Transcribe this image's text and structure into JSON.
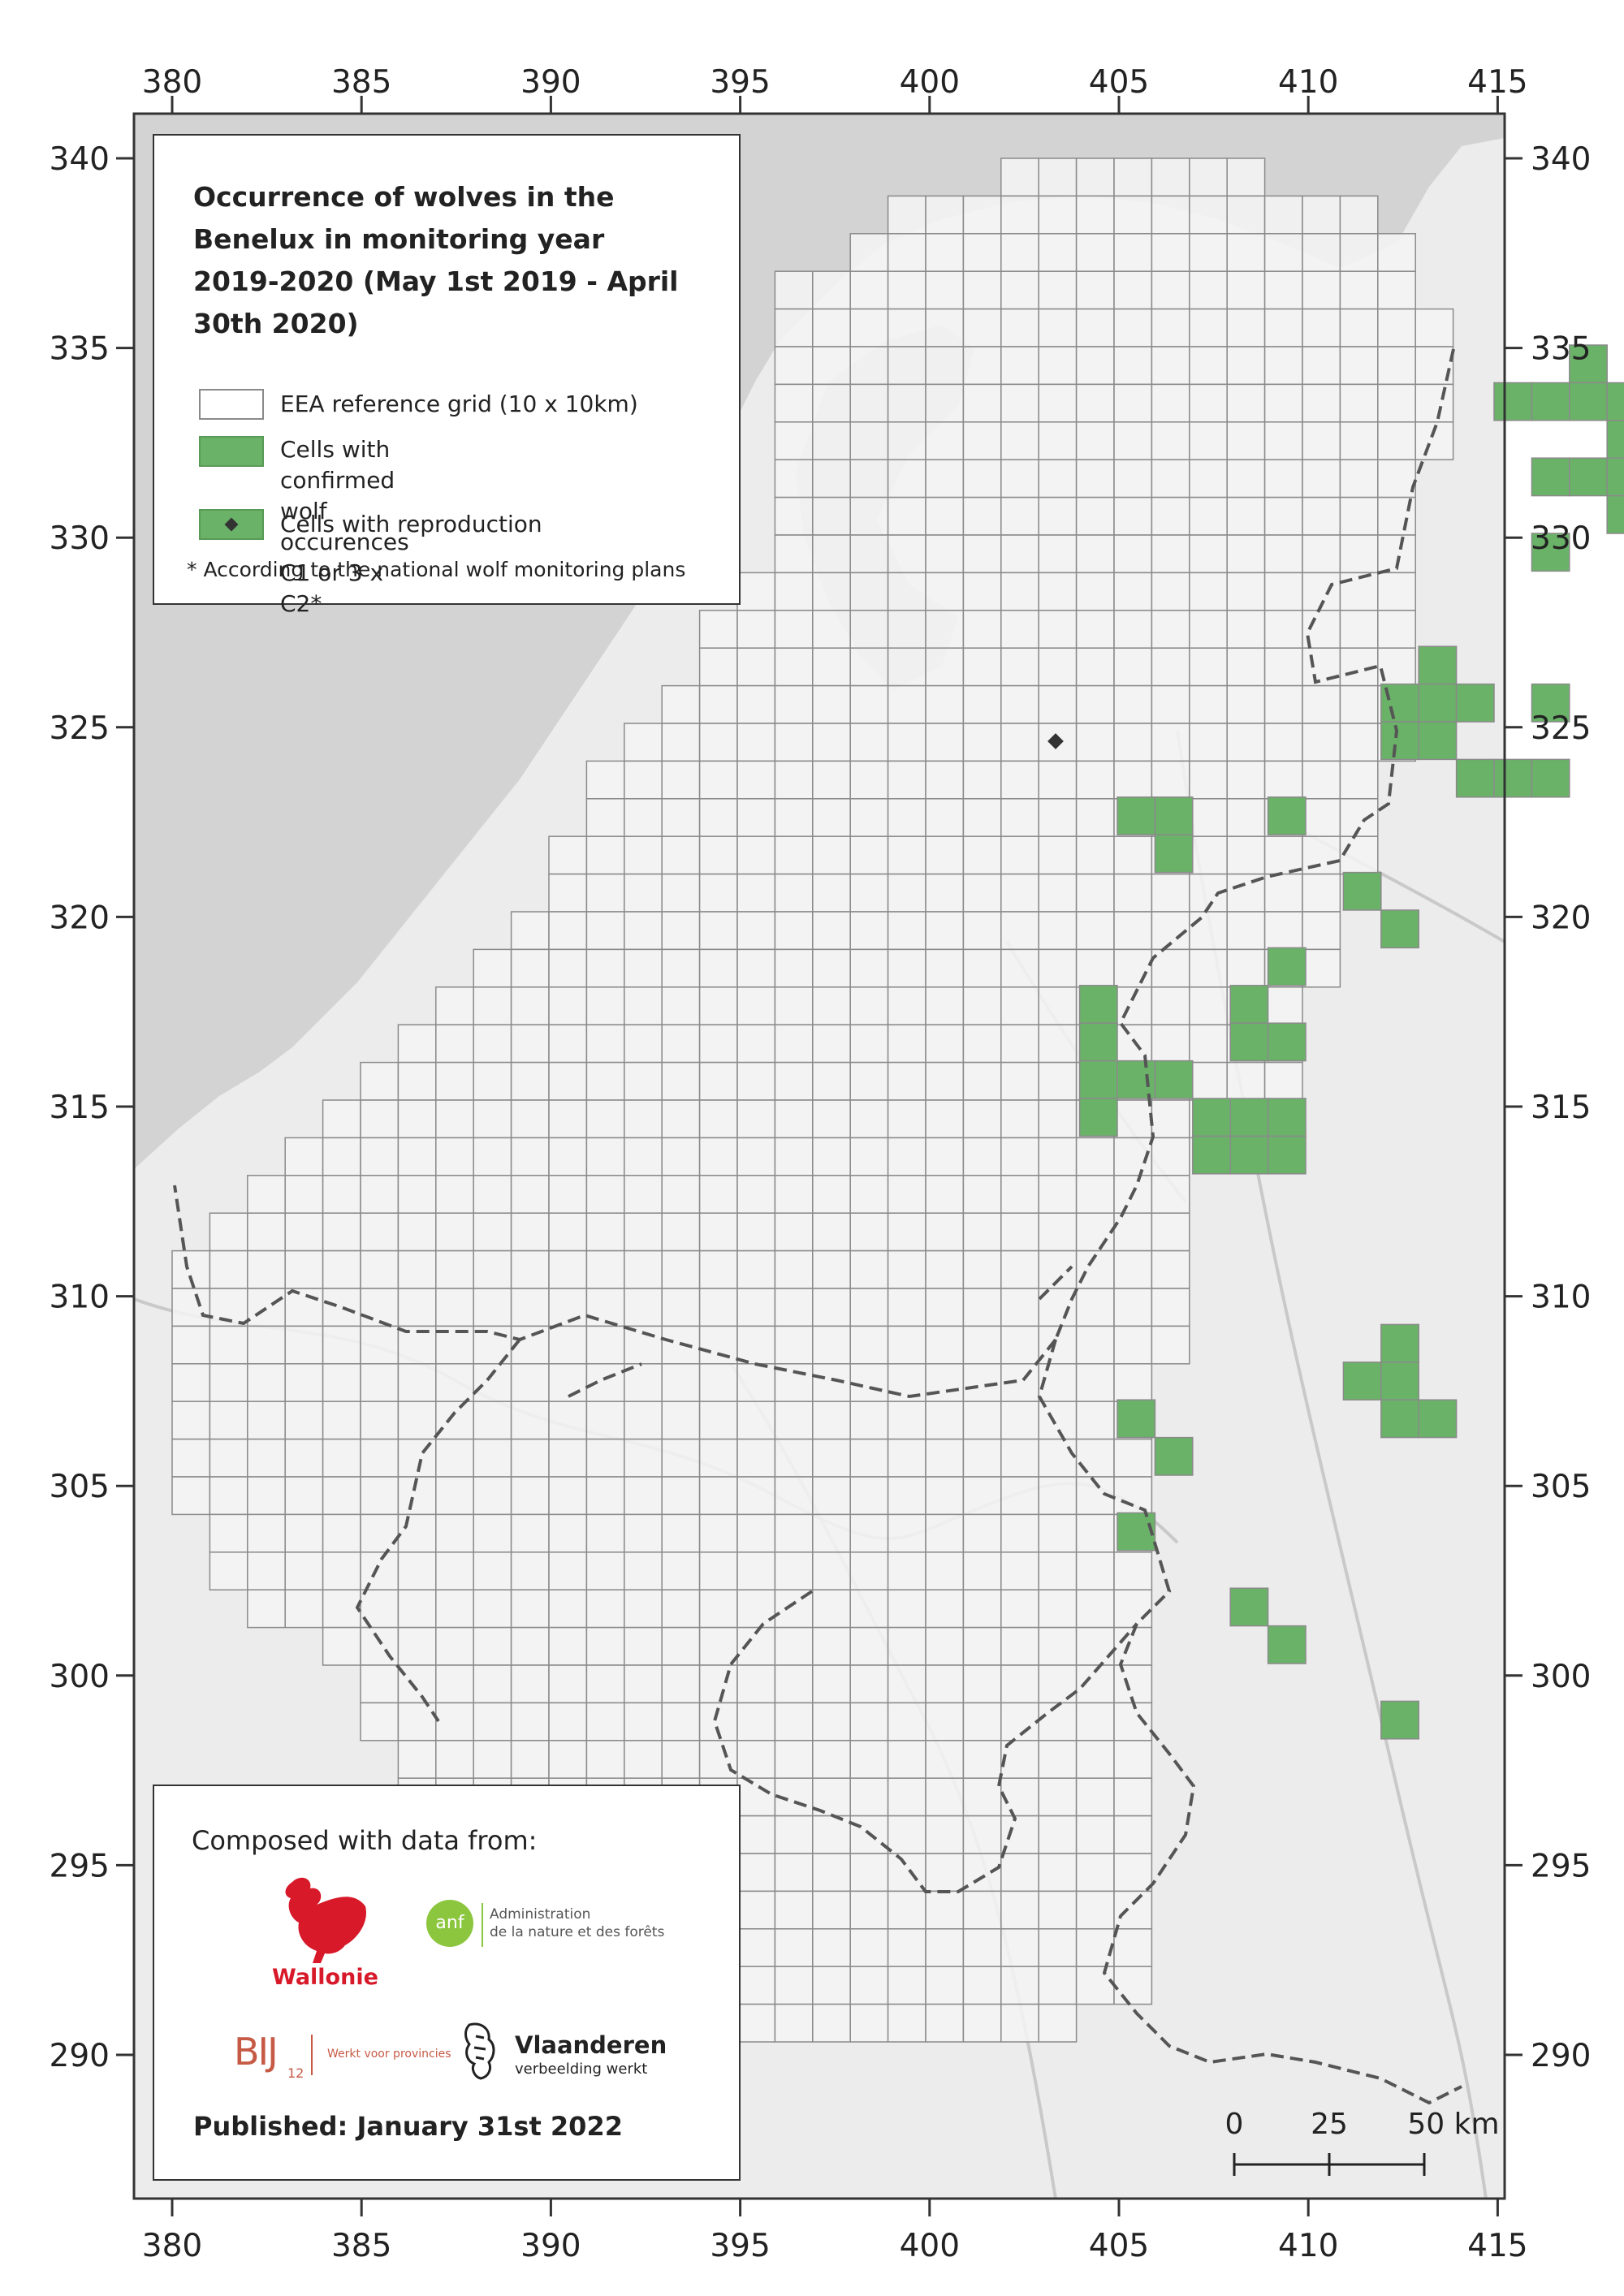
{
  "map": {
    "x_axis_ticks": [
      "380",
      "385",
      "390",
      "395",
      "400",
      "405",
      "410",
      "415"
    ],
    "y_axis_ticks": [
      "340",
      "335",
      "330",
      "325",
      "320",
      "315",
      "310",
      "305",
      "300",
      "295",
      "290"
    ],
    "colors": {
      "land": "#ececec",
      "sea": "#d3d3d3",
      "grid_cell": "#f4f4f4",
      "grid_line": "#8a8a8a",
      "wolf_cell": "#6ab268",
      "border": "#555555",
      "river": "#c9c9c9"
    }
  },
  "legend": {
    "title": "Occurrence of wolves in the Benelux in monitoring year 2019-2020 (May 1st 2019 - April 30th 2020)",
    "items": [
      {
        "label": "EEA reference grid (10 x 10km)",
        "icon": "empty-grid-square"
      },
      {
        "label": "Cells with confirmed wolf occurences\nC1 or 3 x C2*",
        "icon": "green-square"
      },
      {
        "label": "Cells with reproduction",
        "icon": "green-square-diamond"
      }
    ],
    "note": "* According to the national wolf monitoring plans"
  },
  "credits": {
    "title": "Composed with data from:",
    "logos": {
      "wallonie": "Wallonie",
      "anf_mark": "anf",
      "anf_line1": "Administration",
      "anf_line2": "de la nature et des forêts",
      "bij12_mark": "BIJ",
      "bij12_sub": "12",
      "bij12_tagline": "Werkt voor provincies",
      "vlaanderen_name": "Vlaanderen",
      "vlaanderen_tagline": "verbeelding werkt"
    },
    "published": "Published: January 31st 2022"
  },
  "scale_bar": {
    "labels": [
      "0",
      "25",
      "50 km"
    ]
  }
}
